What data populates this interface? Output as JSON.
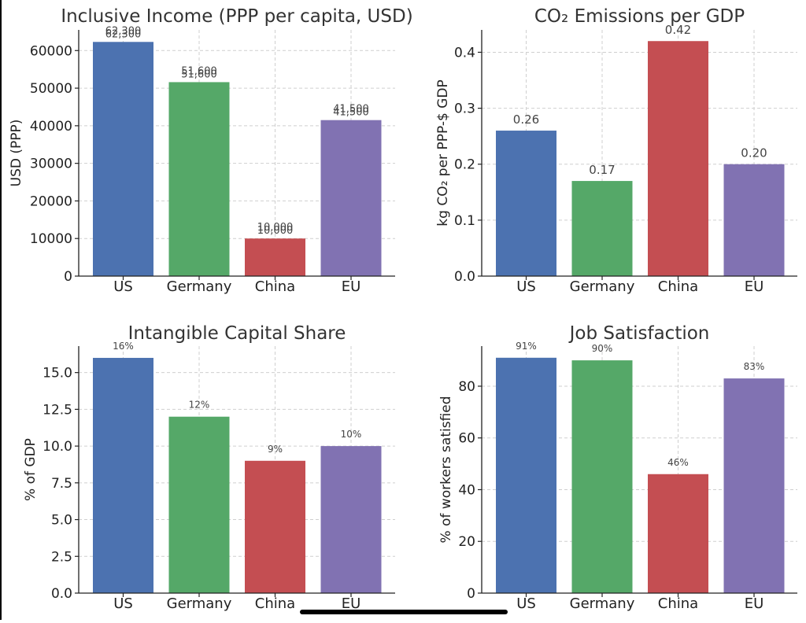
{
  "chart_data": [
    {
      "type": "bar",
      "title": "Inclusive Income (PPP per capita, USD)",
      "ylabel": "USD (PPP)",
      "categories": [
        "US",
        "Germany",
        "China",
        "EU"
      ],
      "values": [
        62300,
        51600,
        10000,
        41500
      ],
      "value_labels": [
        "62,300",
        "51,600",
        "10,000",
        "41,500"
      ],
      "ylim": [
        0,
        65500
      ],
      "yticks": [
        0,
        10000,
        20000,
        30000,
        40000,
        50000,
        60000
      ],
      "ytick_labels": [
        "0",
        "10000",
        "20000",
        "30000",
        "40000",
        "50000",
        "60000"
      ],
      "colors": [
        "#4c72b0",
        "#55a868",
        "#c44e52",
        "#8172b2"
      ],
      "grid": true
    },
    {
      "type": "bar",
      "title": "CO₂ Emissions per GDP",
      "ylabel": "kg CO₂ per PPP-$ GDP",
      "categories": [
        "US",
        "Germany",
        "China",
        "EU"
      ],
      "values": [
        0.26,
        0.17,
        0.42,
        0.2
      ],
      "value_labels": [
        "0.26",
        "0.17",
        "0.42",
        "0.20"
      ],
      "ylim": [
        0,
        0.44
      ],
      "yticks": [
        0,
        0.1,
        0.2,
        0.3,
        0.4
      ],
      "ytick_labels": [
        "0.0",
        "0.1",
        "0.2",
        "0.3",
        "0.4"
      ],
      "colors": [
        "#4c72b0",
        "#55a868",
        "#c44e52",
        "#8172b2"
      ],
      "grid": true
    },
    {
      "type": "bar",
      "title": "Intangible Capital Share",
      "ylabel": "% of GDP",
      "categories": [
        "US",
        "Germany",
        "China",
        "EU"
      ],
      "values": [
        16,
        12,
        9,
        10
      ],
      "value_labels": [
        "16%",
        "12%",
        "9%",
        "10%"
      ],
      "ylim": [
        0,
        16.8
      ],
      "yticks": [
        0,
        2.5,
        5,
        7.5,
        10,
        12.5,
        15
      ],
      "ytick_labels": [
        "0.0",
        "2.5",
        "5.0",
        "7.5",
        "10.0",
        "12.5",
        "15.0"
      ],
      "colors": [
        "#4c72b0",
        "#55a868",
        "#c44e52",
        "#8172b2"
      ],
      "grid": true
    },
    {
      "type": "bar",
      "title": "Job Satisfaction",
      "ylabel": "% of workers satisfied",
      "categories": [
        "US",
        "Germany",
        "China",
        "EU"
      ],
      "values": [
        91,
        90,
        46,
        83
      ],
      "value_labels": [
        "91%",
        "90%",
        "46%",
        "83%"
      ],
      "ylim": [
        0,
        95.5
      ],
      "yticks": [
        0,
        20,
        40,
        60,
        80
      ],
      "ytick_labels": [
        "0",
        "20",
        "40",
        "60",
        "80"
      ],
      "colors": [
        "#4c72b0",
        "#55a868",
        "#c44e52",
        "#8172b2"
      ],
      "grid": true
    }
  ]
}
